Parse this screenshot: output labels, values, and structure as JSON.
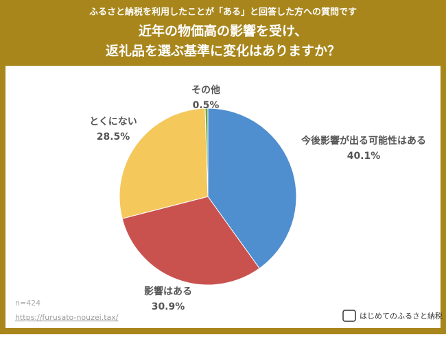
{
  "chart_data": {
    "type": "pie",
    "subtitle": "ふるさと納税を利用したことが「ある」と回答した方への質問です",
    "title_lines": [
      "近年の物価高の影響を受け、",
      "返礼品を選ぶ基準に変化はありますか？"
    ],
    "categories": [
      "今後影響が出る可能性はある",
      "影響はある",
      "とくにない",
      "その他"
    ],
    "values": [
      40.1,
      30.9,
      28.5,
      0.5
    ],
    "value_labels": [
      "40.1%",
      "30.9%",
      "28.5%",
      "0.5%"
    ],
    "colors": [
      "#4f8ecf",
      "#c9524f",
      "#f5c85c",
      "#6aa84f"
    ],
    "note": "n=424",
    "source": "https://furusato-nouzei.tax/",
    "logo": "はじめてのふるさと納税"
  }
}
